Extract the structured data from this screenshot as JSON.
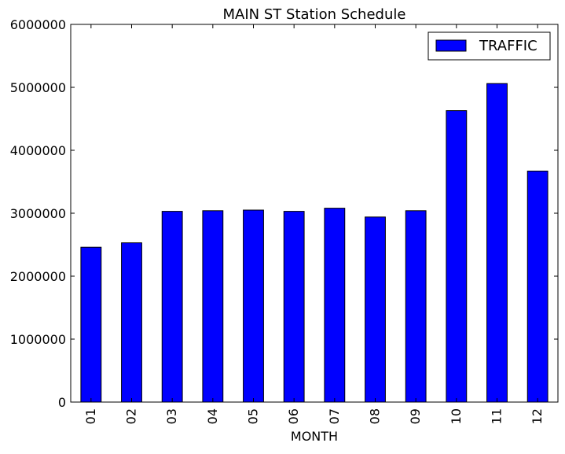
{
  "chart_data": {
    "type": "bar",
    "title": "MAIN ST Station Schedule",
    "xlabel": "MONTH",
    "ylabel": "",
    "categories": [
      "01",
      "02",
      "03",
      "04",
      "05",
      "06",
      "07",
      "08",
      "09",
      "10",
      "11",
      "12"
    ],
    "series": [
      {
        "name": "TRAFFIC",
        "color": "#0000ff",
        "values": [
          2460000,
          2530000,
          3030000,
          3040000,
          3050000,
          3030000,
          3080000,
          2940000,
          3040000,
          4630000,
          5060000,
          3670000
        ]
      }
    ],
    "ylim": [
      0,
      6000000
    ],
    "yticks": [
      "0",
      "1000000",
      "2000000",
      "3000000",
      "4000000",
      "5000000",
      "6000000"
    ],
    "grid": false,
    "legend_position": "top-right"
  }
}
